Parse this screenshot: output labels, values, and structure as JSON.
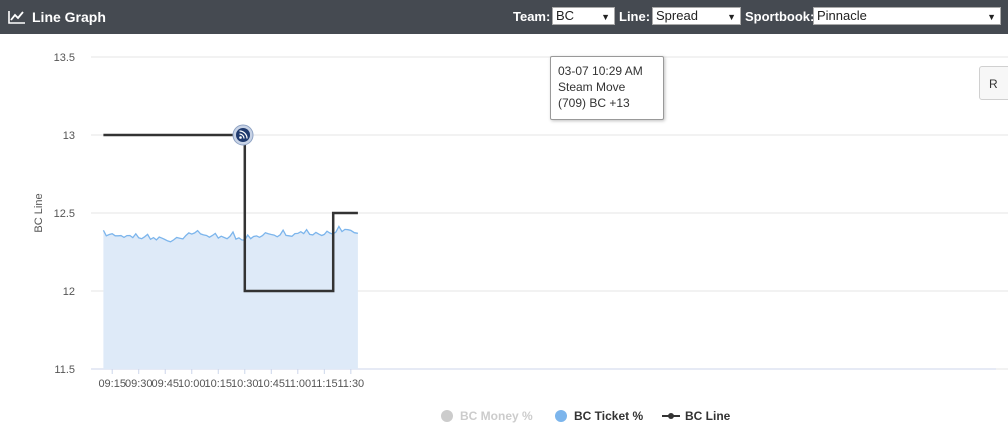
{
  "header": {
    "title": "Line Graph",
    "team_label": "Team:",
    "team_value": "BC",
    "line_label": "Line:",
    "line_value": "Spread",
    "sportsbook_label": "Sportbook:",
    "sportsbook_value": "Pinnacle"
  },
  "side_button_label": "R",
  "tooltip": {
    "line1": "03-07 10:29 AM",
    "line2": "Steam Move",
    "line3": "(709) BC +13"
  },
  "colors": {
    "header_bg": "#454a51",
    "ticket_line": "#7cb5ec",
    "ticket_fill": "#deeaf8",
    "bc_line": "#333333",
    "money_legend_inactive": "#cccccc",
    "marker": "#1f3a6e"
  },
  "chart_data": {
    "type": "line",
    "xlabel": "",
    "ylabel": "BC Line",
    "ylim": [
      11.5,
      13.5
    ],
    "yticks": [
      "11.5",
      "12",
      "12.5",
      "13",
      "13.5"
    ],
    "xticks": [
      "09:15",
      "09:30",
      "09:45",
      "10:00",
      "10:15",
      "10:30",
      "10:45",
      "11:00",
      "11:15",
      "11:30"
    ],
    "x_range_minutes": [
      543,
      1055
    ],
    "grid": true,
    "legend_position": "bottom",
    "legend": [
      {
        "name": "BC Money %",
        "active": false
      },
      {
        "name": "BC Ticket %",
        "active": true
      },
      {
        "name": "BC Line",
        "active": true
      }
    ],
    "series": [
      {
        "name": "BC Line",
        "step": true,
        "points": [
          [
            "09:10",
            13
          ],
          [
            "10:30",
            13
          ],
          [
            "10:30",
            12
          ],
          [
            "11:20",
            12
          ],
          [
            "11:20",
            12.5
          ],
          [
            "11:34",
            12.5
          ]
        ]
      },
      {
        "name": "BC Ticket %",
        "points": [
          [
            "09:10",
            12.37
          ],
          [
            "09:20",
            12.36
          ],
          [
            "09:30",
            12.35
          ],
          [
            "09:40",
            12.34
          ],
          [
            "09:48",
            12.33
          ],
          [
            "09:55",
            12.35
          ],
          [
            "10:00",
            12.38
          ],
          [
            "10:05",
            12.36
          ],
          [
            "10:15",
            12.35
          ],
          [
            "10:25",
            12.34
          ],
          [
            "10:30",
            12.33
          ],
          [
            "10:35",
            12.35
          ],
          [
            "10:45",
            12.36
          ],
          [
            "10:55",
            12.35
          ],
          [
            "11:05",
            12.37
          ],
          [
            "11:12",
            12.36
          ],
          [
            "11:18",
            12.37
          ],
          [
            "11:25",
            12.38
          ],
          [
            "11:30",
            12.39
          ],
          [
            "11:34",
            12.37
          ]
        ]
      }
    ],
    "marker": {
      "x": "10:29",
      "y": 13,
      "label": "Steam Move"
    }
  }
}
